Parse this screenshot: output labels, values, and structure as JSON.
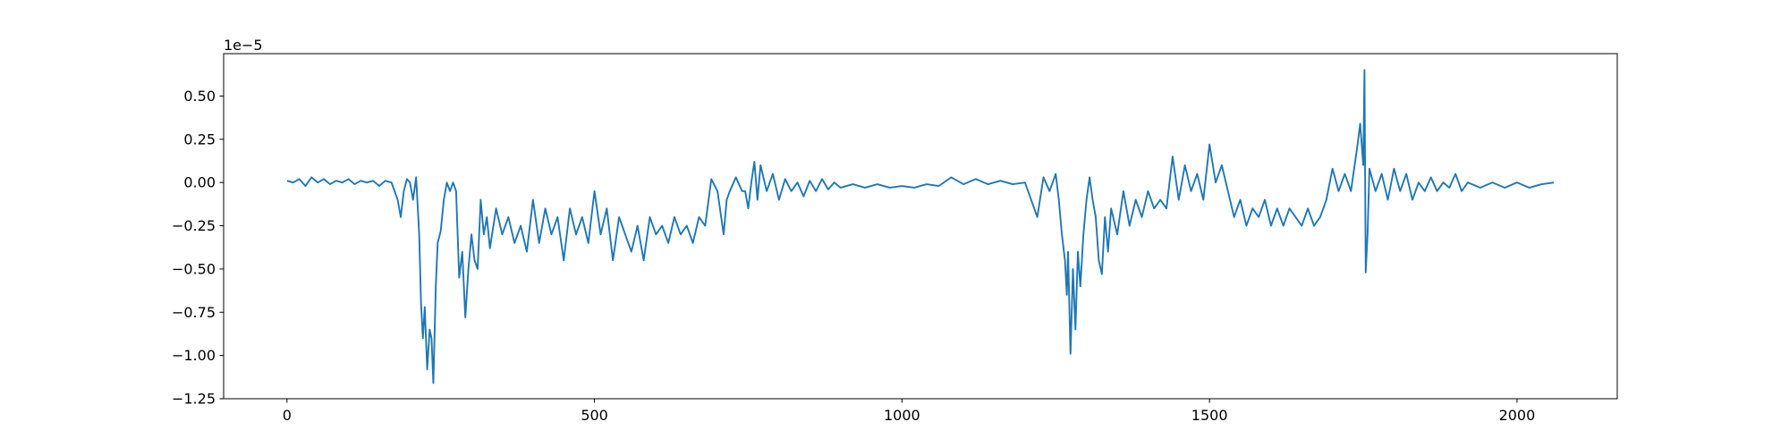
{
  "chart_data": {
    "type": "line",
    "offset_label": "1e−5",
    "x": [
      0,
      10,
      20,
      30,
      40,
      50,
      60,
      70,
      80,
      90,
      100,
      110,
      120,
      130,
      140,
      150,
      160,
      170,
      180,
      185,
      190,
      195,
      200,
      205,
      210,
      215,
      218,
      221,
      224,
      228,
      232,
      235,
      238,
      242,
      245,
      250,
      255,
      260,
      265,
      270,
      275,
      280,
      285,
      290,
      295,
      300,
      305,
      310,
      315,
      320,
      325,
      330,
      340,
      350,
      360,
      370,
      380,
      390,
      400,
      410,
      420,
      430,
      440,
      450,
      460,
      470,
      480,
      490,
      500,
      510,
      520,
      530,
      540,
      550,
      560,
      570,
      580,
      590,
      600,
      610,
      620,
      630,
      640,
      650,
      660,
      670,
      680,
      690,
      700,
      710,
      715,
      720,
      730,
      740,
      745,
      750,
      755,
      760,
      765,
      770,
      780,
      790,
      800,
      810,
      820,
      830,
      840,
      850,
      860,
      870,
      880,
      890,
      900,
      920,
      940,
      960,
      980,
      1000,
      1020,
      1040,
      1060,
      1080,
      1100,
      1120,
      1140,
      1160,
      1180,
      1200,
      1210,
      1220,
      1230,
      1240,
      1250,
      1255,
      1260,
      1265,
      1268,
      1270,
      1274,
      1278,
      1282,
      1286,
      1290,
      1295,
      1300,
      1305,
      1310,
      1315,
      1320,
      1325,
      1330,
      1335,
      1340,
      1350,
      1360,
      1370,
      1380,
      1390,
      1400,
      1410,
      1420,
      1430,
      1440,
      1450,
      1460,
      1470,
      1480,
      1490,
      1500,
      1510,
      1520,
      1530,
      1540,
      1550,
      1560,
      1570,
      1580,
      1590,
      1600,
      1610,
      1620,
      1630,
      1640,
      1650,
      1660,
      1670,
      1680,
      1690,
      1700,
      1710,
      1720,
      1730,
      1740,
      1745,
      1750,
      1752,
      1754,
      1757,
      1760,
      1770,
      1780,
      1790,
      1800,
      1810,
      1820,
      1830,
      1840,
      1850,
      1860,
      1870,
      1880,
      1890,
      1900,
      1910,
      1920,
      1940,
      1960,
      1980,
      2000,
      2020,
      2040,
      2060
    ],
    "series": [
      {
        "color": "#1f77b4",
        "values": [
          0.01,
          0.0,
          0.02,
          -0.02,
          0.03,
          0.0,
          0.02,
          -0.01,
          0.01,
          0.0,
          0.02,
          -0.01,
          0.01,
          0.0,
          0.01,
          -0.02,
          0.01,
          0.0,
          -0.1,
          -0.2,
          -0.05,
          0.02,
          0.0,
          -0.1,
          0.03,
          -0.3,
          -0.7,
          -0.9,
          -0.72,
          -1.08,
          -0.85,
          -0.9,
          -1.16,
          -0.6,
          -0.35,
          -0.28,
          -0.1,
          0.0,
          -0.05,
          0.0,
          -0.05,
          -0.55,
          -0.4,
          -0.78,
          -0.5,
          -0.3,
          -0.45,
          -0.5,
          -0.1,
          -0.3,
          -0.2,
          -0.38,
          -0.15,
          -0.3,
          -0.2,
          -0.35,
          -0.25,
          -0.4,
          -0.1,
          -0.35,
          -0.15,
          -0.3,
          -0.2,
          -0.45,
          -0.15,
          -0.3,
          -0.2,
          -0.35,
          -0.05,
          -0.3,
          -0.15,
          -0.45,
          -0.2,
          -0.3,
          -0.4,
          -0.25,
          -0.45,
          -0.2,
          -0.3,
          -0.25,
          -0.35,
          -0.2,
          -0.3,
          -0.25,
          -0.35,
          -0.2,
          -0.25,
          0.02,
          -0.05,
          -0.3,
          -0.1,
          -0.05,
          0.03,
          -0.05,
          -0.05,
          -0.15,
          0.0,
          0.12,
          -0.1,
          0.1,
          -0.05,
          0.05,
          -0.1,
          0.02,
          -0.05,
          0.0,
          -0.08,
          0.01,
          -0.05,
          0.02,
          -0.04,
          0.0,
          -0.03,
          -0.01,
          -0.03,
          -0.01,
          -0.03,
          -0.02,
          -0.03,
          -0.01,
          -0.02,
          0.03,
          -0.01,
          0.02,
          -0.01,
          0.01,
          -0.01,
          0.0,
          -0.1,
          -0.2,
          0.03,
          -0.05,
          0.05,
          -0.1,
          -0.3,
          -0.45,
          -0.65,
          -0.4,
          -0.99,
          -0.5,
          -0.85,
          -0.4,
          -0.6,
          -0.3,
          -0.1,
          0.03,
          -0.1,
          -0.2,
          -0.45,
          -0.53,
          -0.2,
          -0.4,
          -0.15,
          -0.3,
          -0.05,
          -0.25,
          -0.1,
          -0.2,
          -0.05,
          -0.15,
          -0.1,
          -0.15,
          0.15,
          -0.1,
          0.1,
          -0.05,
          0.05,
          -0.1,
          0.22,
          0.0,
          0.1,
          -0.05,
          -0.2,
          -0.1,
          -0.25,
          -0.15,
          -0.2,
          -0.1,
          -0.25,
          -0.15,
          -0.25,
          -0.15,
          -0.2,
          -0.25,
          -0.15,
          -0.25,
          -0.2,
          -0.1,
          0.08,
          -0.05,
          0.05,
          -0.05,
          0.2,
          0.34,
          0.1,
          0.65,
          -0.52,
          -0.3,
          0.08,
          -0.05,
          0.05,
          -0.1,
          0.08,
          -0.05,
          0.05,
          -0.1,
          0.0,
          -0.05,
          0.03,
          -0.05,
          0.0,
          -0.03,
          0.05,
          -0.05,
          0.0,
          -0.03,
          0.0,
          -0.03,
          0.0,
          -0.03,
          -0.01,
          0.0
        ]
      }
    ],
    "xlim": [
      -103,
      2163
    ],
    "ylim": [
      -1.25,
      0.745
    ],
    "xticks": [
      0,
      500,
      1000,
      1500,
      2000
    ],
    "yticks": [
      {
        "value": -1.25,
        "label": "−1.25"
      },
      {
        "value": -1.0,
        "label": "−1.00"
      },
      {
        "value": -0.75,
        "label": "−0.75"
      },
      {
        "value": -0.5,
        "label": "−0.50"
      },
      {
        "value": -0.25,
        "label": "−0.25"
      },
      {
        "value": 0,
        "label": "0.00"
      },
      {
        "value": 0.25,
        "label": "0.25"
      },
      {
        "value": 0.5,
        "label": "0.50"
      }
    ],
    "grid": false
  }
}
